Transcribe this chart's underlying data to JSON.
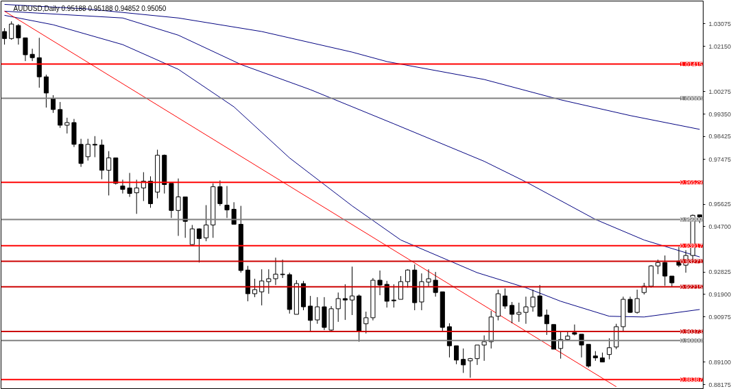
{
  "chart_data": {
    "type": "candlestick",
    "title": "AUDUSD,Daily  0.95188 0.95188 0.94852 0.95050",
    "categories": [
      null,
      null,
      null,
      null,
      null,
      null,
      null,
      null,
      null,
      null,
      null,
      null,
      null,
      null,
      null,
      null,
      null,
      null,
      null,
      null,
      null,
      null,
      null,
      null,
      null,
      null,
      null,
      null,
      null,
      null,
      null,
      null,
      null,
      null,
      null,
      null,
      null,
      null,
      null,
      null,
      null,
      null,
      null,
      null,
      null,
      null,
      null,
      null,
      null,
      null,
      null,
      null,
      null,
      null,
      null,
      null,
      null,
      null,
      null,
      null,
      null,
      null,
      null,
      null,
      null,
      null,
      null,
      null,
      null,
      null,
      null,
      null,
      null,
      null,
      null,
      null,
      null,
      null,
      null,
      null,
      null,
      null,
      null,
      null,
      null,
      null,
      null,
      null,
      null,
      null,
      null,
      null,
      null,
      null,
      null,
      null,
      null,
      null,
      null,
      null,
      null
    ],
    "ohlc": [
      [
        1.0276,
        1.029,
        1.0222,
        1.0247
      ],
      [
        1.0247,
        1.0318,
        1.0242,
        1.0307
      ],
      [
        1.0301,
        1.0307,
        1.0222,
        1.025
      ],
      [
        1.025,
        1.025,
        1.0154,
        1.018
      ],
      [
        1.0182,
        1.0205,
        1.0154,
        1.0168
      ],
      [
        1.0168,
        1.025,
        1.0044,
        1.0089
      ],
      [
        1.0089,
        1.0098,
        0.9962,
        1.0022
      ],
      [
        0.9999,
        1.0013,
        0.994,
        0.9954
      ],
      [
        0.9954,
        0.9985,
        0.9878,
        0.9889
      ],
      [
        0.9889,
        0.992,
        0.9855,
        0.99
      ],
      [
        0.99,
        0.9915,
        0.9799,
        0.981
      ],
      [
        0.981,
        0.9833,
        0.9717,
        0.9731
      ],
      [
        0.9759,
        0.9833,
        0.9743,
        0.981
      ],
      [
        0.981,
        0.9844,
        0.9757,
        0.9807
      ],
      [
        0.9807,
        0.983,
        0.9666,
        0.9703
      ],
      [
        0.9703,
        0.9782,
        0.9599,
        0.9754
      ],
      [
        0.9754,
        0.9754,
        0.9644,
        0.9649
      ],
      [
        0.9638,
        0.9664,
        0.9607,
        0.9624
      ],
      [
        0.963,
        0.9692,
        0.9593,
        0.9607
      ],
      [
        0.961,
        0.9664,
        0.9523,
        0.963
      ],
      [
        0.963,
        0.9695,
        0.9576,
        0.9658
      ],
      [
        0.9658,
        0.9678,
        0.9548,
        0.9565
      ],
      [
        0.9613,
        0.9788,
        0.9587,
        0.9765
      ],
      [
        0.9765,
        0.9768,
        0.9607,
        0.9644
      ],
      [
        0.9649,
        0.9649,
        0.9506,
        0.9537
      ],
      [
        0.9537,
        0.9669,
        0.9432,
        0.9593
      ],
      [
        0.9593,
        0.9593,
        0.9424,
        0.9492
      ],
      [
        0.9396,
        0.9477,
        0.9393,
        0.9461
      ],
      [
        0.9461,
        0.9463,
        0.9322,
        0.9421
      ],
      [
        0.9424,
        0.9559,
        0.941,
        0.9477
      ],
      [
        0.9477,
        0.9649,
        0.9424,
        0.9635
      ],
      [
        0.9635,
        0.9661,
        0.9556,
        0.9565
      ],
      [
        0.9559,
        0.9638,
        0.9506,
        0.9539
      ],
      [
        0.9542,
        0.9571,
        0.948,
        0.948
      ],
      [
        0.948,
        0.9556,
        0.928,
        0.9289
      ],
      [
        0.9291,
        0.9308,
        0.9162,
        0.9193
      ],
      [
        0.9193,
        0.9255,
        0.9179,
        0.921
      ],
      [
        0.9201,
        0.9294,
        0.9145,
        0.9246
      ],
      [
        0.9243,
        0.9294,
        0.9193,
        0.9255
      ],
      [
        0.9255,
        0.9342,
        0.9229,
        0.9274
      ],
      [
        0.9274,
        0.9334,
        0.9258,
        0.9272
      ],
      [
        0.9272,
        0.928,
        0.9111,
        0.9128
      ],
      [
        0.9108,
        0.9249,
        0.9108,
        0.9235
      ],
      [
        0.9235,
        0.9246,
        0.9125,
        0.9139
      ],
      [
        0.9142,
        0.9184,
        0.9038,
        0.9083
      ],
      [
        0.9085,
        0.9179,
        0.9069,
        0.9139
      ],
      [
        0.9139,
        0.9179,
        0.9043,
        0.9054
      ],
      [
        0.9043,
        0.9142,
        0.9038,
        0.9131
      ],
      [
        0.9131,
        0.9198,
        0.9077,
        0.9173
      ],
      [
        0.9173,
        0.9232,
        0.9085,
        0.9167
      ],
      [
        0.9167,
        0.9305,
        0.9105,
        0.9184
      ],
      [
        0.9184,
        0.919,
        0.8995,
        0.904
      ],
      [
        0.9069,
        0.9119,
        0.9029,
        0.9094
      ],
      [
        0.9094,
        0.9258,
        0.9083,
        0.9249
      ],
      [
        0.9249,
        0.9289,
        0.9187,
        0.9229
      ],
      [
        0.9232,
        0.9246,
        0.9136,
        0.9162
      ],
      [
        0.9167,
        0.9232,
        0.9136,
        0.9164
      ],
      [
        0.917,
        0.9266,
        0.917,
        0.9243
      ],
      [
        0.9243,
        0.9294,
        0.9218,
        0.9291
      ],
      [
        0.9291,
        0.9314,
        0.9125,
        0.9156
      ],
      [
        0.9159,
        0.9277,
        0.9125,
        0.9243
      ],
      [
        0.9241,
        0.9294,
        0.9221,
        0.9255
      ],
      [
        0.9249,
        0.9283,
        0.9181,
        0.9198
      ],
      [
        0.9201,
        0.9201,
        0.904,
        0.9054
      ],
      [
        0.9057,
        0.9071,
        0.893,
        0.8978
      ],
      [
        0.8978,
        0.8978,
        0.8902,
        0.8919
      ],
      [
        0.8922,
        0.8967,
        0.8866,
        0.8899
      ],
      [
        0.8916,
        0.8928,
        0.8846,
        0.8925
      ],
      [
        0.8925,
        0.8981,
        0.8899,
        0.8981
      ],
      [
        0.8981,
        0.9021,
        0.8916,
        0.8995
      ],
      [
        0.8995,
        0.9122,
        0.8967,
        0.9097
      ],
      [
        0.91,
        0.921,
        0.9083,
        0.9193
      ],
      [
        0.9184,
        0.9215,
        0.9131,
        0.9142
      ],
      [
        0.9145,
        0.9159,
        0.9071,
        0.9108
      ],
      [
        0.9108,
        0.9156,
        0.9077,
        0.9116
      ],
      [
        0.9116,
        0.9181,
        0.9069,
        0.9139
      ],
      [
        0.9139,
        0.921,
        0.9119,
        0.9179
      ],
      [
        0.9184,
        0.9229,
        0.9097,
        0.91
      ],
      [
        0.9105,
        0.9128,
        0.9023,
        0.9069
      ],
      [
        0.9066,
        0.9066,
        0.8964,
        0.8964
      ],
      [
        0.8967,
        0.904,
        0.8925,
        0.9004
      ],
      [
        0.9004,
        0.904,
        0.9001,
        0.9018
      ],
      [
        0.9032,
        0.9066,
        0.9021,
        0.9026
      ],
      [
        0.9026,
        0.9026,
        0.893,
        0.8981
      ],
      [
        0.8984,
        0.8984,
        0.8888,
        0.8894
      ],
      [
        0.8936,
        0.8956,
        0.8916,
        0.8928
      ],
      [
        0.8928,
        0.895,
        0.8911,
        0.8911
      ],
      [
        0.8942,
        0.9009,
        0.8922,
        0.897
      ],
      [
        0.8973,
        0.9069,
        0.8964,
        0.9057
      ],
      [
        0.9057,
        0.9181,
        0.9035,
        0.917
      ],
      [
        0.917,
        0.9181,
        0.9114,
        0.9116
      ],
      [
        0.9116,
        0.921,
        0.9111,
        0.9173
      ],
      [
        0.9198,
        0.9238,
        0.919,
        0.9224
      ],
      [
        0.9224,
        0.9311,
        0.9218,
        0.9308
      ],
      [
        0.9308,
        0.9334,
        0.9274,
        0.9322
      ],
      [
        0.9322,
        0.9351,
        0.9226,
        0.9266
      ],
      [
        0.9266,
        0.9266,
        0.9221,
        0.9238
      ],
      [
        0.9328,
        0.9387,
        0.9303,
        0.9311
      ],
      [
        0.9311,
        0.9373,
        0.928,
        0.9351
      ],
      [
        0.9351,
        0.952,
        0.9331,
        0.9517
      ],
      [
        0.95188,
        0.95188,
        0.94852,
        0.9505
      ]
    ],
    "series": [
      {
        "type": "line",
        "color": "#000080",
        "values": [
          1.0388,
          null,
          null,
          null,
          null,
          null,
          null,
          null,
          null,
          null,
          null,
          null,
          1.0369,
          null,
          null,
          null,
          null,
          null,
          null,
          null,
          null,
          null,
          null,
          null,
          null,
          1.0332,
          null,
          null,
          null,
          null,
          null,
          null,
          null,
          null,
          null,
          null,
          null,
          1.0276,
          null,
          null,
          null,
          null,
          null,
          null,
          null,
          null,
          null,
          null,
          null,
          null,
          1.0191,
          null,
          null,
          null,
          null,
          1.0152,
          null,
          null,
          null,
          null,
          null,
          null,
          null,
          null,
          null,
          null,
          null,
          null,
          null,
          1.0078,
          null,
          null,
          null,
          null,
          null,
          null,
          null,
          null,
          null,
          null,
          0.9994,
          null,
          null,
          null,
          null,
          null,
          null,
          null,
          null,
          null,
          0.9929,
          null,
          null,
          null,
          null,
          null,
          null,
          null,
          null,
          null,
          0.9872
        ]
      },
      {
        "type": "line",
        "color": "#000080",
        "values": [
          1.036,
          null,
          null,
          null,
          null,
          null,
          null,
          null,
          null,
          null,
          null,
          null,
          null,
          null,
          null,
          null,
          null,
          1.0332,
          null,
          null,
          null,
          null,
          null,
          null,
          null,
          1.0261,
          null,
          null,
          null,
          null,
          null,
          null,
          null,
          null,
          1.014,
          null,
          null,
          null,
          null,
          null,
          null,
          null,
          null,
          null,
          1.0036,
          null,
          null,
          null,
          null,
          null,
          null,
          null,
          null,
          null,
          null,
          null,
          0.9895,
          null,
          null,
          null,
          null,
          null,
          null,
          null,
          null,
          null,
          null,
          null,
          null,
          0.974,
          null,
          null,
          null,
          null,
          null,
          0.9655,
          null,
          null,
          null,
          null,
          null,
          null,
          null,
          null,
          null,
          0.95,
          null,
          null,
          null,
          null,
          null,
          null,
          0.9415,
          null,
          null,
          null,
          null,
          null,
          null,
          null,
          0.9345
        ]
      },
      {
        "type": "line",
        "color": "#000080",
        "values": [
          1.0343,
          null,
          null,
          null,
          null,
          null,
          null,
          1.0304,
          null,
          null,
          null,
          null,
          null,
          null,
          null,
          null,
          null,
          1.0222,
          null,
          null,
          null,
          null,
          null,
          null,
          null,
          1.012,
          null,
          null,
          null,
          null,
          null,
          null,
          null,
          0.9965,
          null,
          null,
          null,
          null,
          null,
          null,
          null,
          0.9754,
          null,
          null,
          null,
          null,
          null,
          null,
          null,
          null,
          0.9556,
          null,
          null,
          null,
          null,
          null,
          null,
          0.9415,
          null,
          null,
          null,
          null,
          null,
          null,
          null,
          null,
          null,
          null,
          0.928,
          null,
          null,
          null,
          null,
          null,
          null,
          0.9218,
          null,
          null,
          null,
          null,
          0.9162,
          null,
          null,
          null,
          null,
          null,
          null,
          0.91,
          null,
          null,
          null,
          null,
          0.9097,
          null,
          null,
          null,
          null,
          null,
          null,
          null,
          0.9128
        ]
      },
      {
        "type": "line",
        "color": "#ff0000",
        "values": [
          1.036,
          null,
          null,
          null,
          null,
          null,
          null,
          null,
          null,
          null,
          null,
          null,
          null,
          null,
          null,
          null,
          null,
          null,
          null,
          null,
          null,
          null,
          null,
          null,
          null,
          null,
          null,
          null,
          null,
          null,
          null,
          null,
          null,
          null,
          null,
          null,
          null,
          null,
          null,
          null,
          null,
          null,
          null,
          null,
          null,
          null,
          null,
          null,
          null,
          null,
          null,
          null,
          null,
          null,
          null,
          null,
          null,
          null,
          null,
          null,
          null,
          null,
          null,
          null,
          null,
          null,
          null,
          null,
          null,
          null,
          null,
          null,
          null,
          null,
          null,
          null,
          null,
          null,
          null,
          null,
          null,
          null,
          null,
          null,
          null,
          null,
          null,
          null,
          0.8809,
          null,
          null,
          null,
          null,
          null,
          null,
          null,
          null,
          null,
          null,
          null,
          null
        ]
      }
    ],
    "ref_lines": [
      {
        "axis": "y",
        "value": 1.01415,
        "label": "1.01415",
        "color": "#ff0000"
      },
      {
        "axis": "y",
        "value": 1.0,
        "label": "1.00000",
        "color": "#808080"
      },
      {
        "axis": "y",
        "value": 0.96529,
        "label": "0.96529",
        "color": "#ff0000"
      },
      {
        "axis": "y",
        "value": 0.95,
        "label": "0.95000",
        "color": "#808080"
      },
      {
        "axis": "y",
        "value": 0.93917,
        "label": "0.93917",
        "color": "#ff0000"
      },
      {
        "axis": "y",
        "value": 0.93271,
        "label": "0.93271",
        "color": "#cc0000"
      },
      {
        "axis": "y",
        "value": 0.92215,
        "label": "0.92215",
        "color": "#cc0000"
      },
      {
        "axis": "y",
        "value": 0.90373,
        "label": "0.90373",
        "color": "#cc0000"
      },
      {
        "axis": "y",
        "value": 0.9,
        "label": "0.90000",
        "color": "#808080"
      },
      {
        "axis": "y",
        "value": 0.88387,
        "label": "0.88387",
        "color": "#ff0000"
      }
    ],
    "ylim": [
      0.8801,
      1.0402
    ],
    "yticks": [
      {
        "value": 1.03075,
        "label": "1.03075"
      },
      {
        "value": 1.0215,
        "label": "1.02150"
      },
      {
        "value": 1.00275,
        "label": "1.00275"
      },
      {
        "value": 0.9935,
        "label": "0.99350"
      },
      {
        "value": 0.98425,
        "label": "0.98425"
      },
      {
        "value": 0.97475,
        "label": "0.97475"
      },
      {
        "value": 0.95625,
        "label": "0.95625"
      },
      {
        "value": 0.947,
        "label": "0.94700"
      },
      {
        "value": 0.92825,
        "label": "0.92825"
      },
      {
        "value": 0.919,
        "label": "0.91900"
      },
      {
        "value": 0.90975,
        "label": "0.90975"
      },
      {
        "value": 0.891,
        "label": "0.89100"
      },
      {
        "value": 0.88175,
        "label": "0.88175"
      }
    ]
  }
}
